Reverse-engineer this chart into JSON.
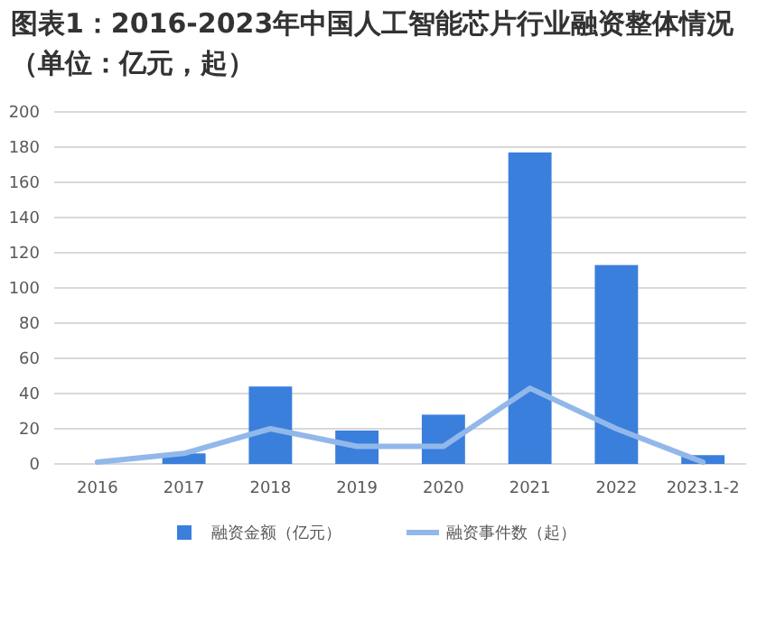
{
  "chart_data": {
    "type": "bar",
    "title": "图表1：2016-2023年中国人工智能芯片行业融资整体情况（单位：亿元，起）",
    "categories": [
      "2016",
      "2017",
      "2018",
      "2019",
      "2020",
      "2021",
      "2022",
      "2023.1-2"
    ],
    "series": [
      {
        "name": "融资金额（亿元）",
        "color": "#3a7fdc",
        "values": [
          0,
          6,
          44,
          19,
          28,
          177,
          113,
          5
        ]
      },
      {
        "name": "融资事件数（起）",
        "type": "line",
        "color": "#92b8ea",
        "values": [
          1,
          6,
          20,
          10,
          10,
          43,
          20,
          1
        ]
      }
    ],
    "ylim": [
      0,
      200
    ],
    "yticks": [
      0,
      20,
      40,
      60,
      80,
      100,
      120,
      140,
      160,
      180,
      200
    ],
    "grid": "y",
    "legend": "bottom",
    "marker": "none"
  }
}
